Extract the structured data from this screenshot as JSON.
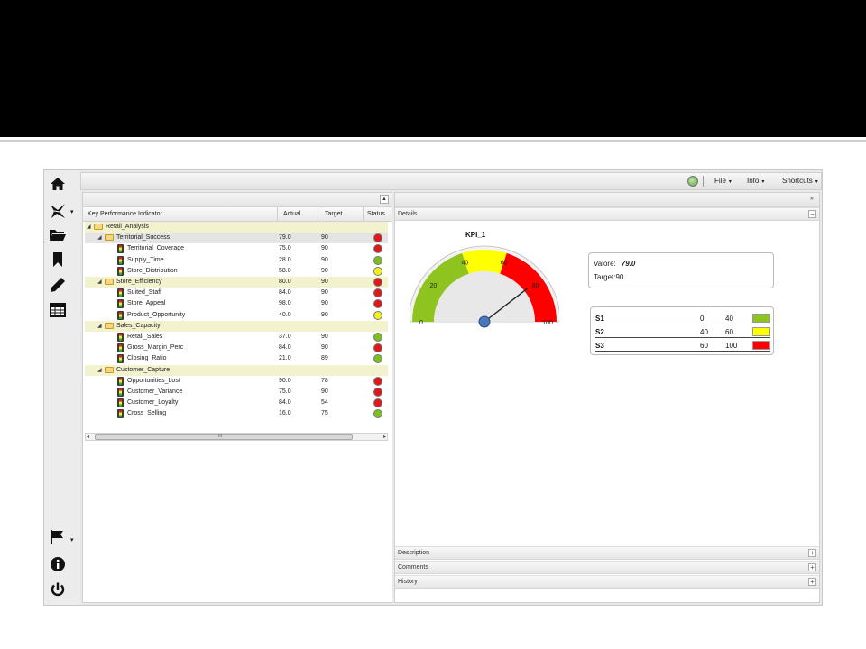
{
  "topbar": {
    "menus": [
      {
        "label": "File",
        "arrow": "▾"
      },
      {
        "label": "Info",
        "arrow": "▾"
      },
      {
        "label": "Shortcuts",
        "arrow": "▾"
      }
    ]
  },
  "sidebar": {
    "icons": [
      "home-icon",
      "navigator-icon",
      "folder-icon",
      "bookmark-icon",
      "pencil-icon",
      "calendar-icon",
      "flag-icon",
      "info-icon",
      "power-icon"
    ]
  },
  "tree": {
    "headers": {
      "name": "Key Performance Indicator",
      "actual": "Actual",
      "target": "Target",
      "status": "Status"
    },
    "rows": [
      {
        "level": 0,
        "type": "group",
        "name": "Retail_Analysis",
        "actual": "",
        "target": "",
        "status": ""
      },
      {
        "level": 1,
        "type": "group",
        "name": "Territorial_Success",
        "actual": "79.0",
        "target": "90",
        "status": "red",
        "selected": true
      },
      {
        "level": 2,
        "type": "kpi",
        "name": "Territorial_Coverage",
        "actual": "75.0",
        "target": "90",
        "status": "red"
      },
      {
        "level": 2,
        "type": "kpi",
        "name": "Supply_Time",
        "actual": "28.0",
        "target": "90",
        "status": "green"
      },
      {
        "level": 2,
        "type": "kpi",
        "name": "Store_Distribution",
        "actual": "58.0",
        "target": "90",
        "status": "yellow"
      },
      {
        "level": 1,
        "type": "group",
        "name": "Store_Efficiency",
        "actual": "80.0",
        "target": "90",
        "status": "red"
      },
      {
        "level": 2,
        "type": "kpi",
        "name": "Suited_Staff",
        "actual": "84.0",
        "target": "90",
        "status": "red"
      },
      {
        "level": 2,
        "type": "kpi",
        "name": "Store_Appeal",
        "actual": "98.0",
        "target": "90",
        "status": "red"
      },
      {
        "level": 2,
        "type": "kpi",
        "name": "Product_Opportunity",
        "actual": "40.0",
        "target": "90",
        "status": "yellow"
      },
      {
        "level": 1,
        "type": "group",
        "name": "Sales_Capacity",
        "actual": "",
        "target": "",
        "status": ""
      },
      {
        "level": 2,
        "type": "kpi",
        "name": "Retail_Sales",
        "actual": "37.0",
        "target": "90",
        "status": "green"
      },
      {
        "level": 2,
        "type": "kpi",
        "name": "Gross_Margin_Perc",
        "actual": "84.0",
        "target": "90",
        "status": "red"
      },
      {
        "level": 2,
        "type": "kpi",
        "name": "Closing_Ratio",
        "actual": "21.0",
        "target": "89",
        "status": "green"
      },
      {
        "level": 1,
        "type": "group",
        "name": "Customer_Capture",
        "actual": "",
        "target": "",
        "status": ""
      },
      {
        "level": 2,
        "type": "kpi",
        "name": "Opportunities_Lost",
        "actual": "90.0",
        "target": "78",
        "status": "red"
      },
      {
        "level": 2,
        "type": "kpi",
        "name": "Customer_Variance",
        "actual": "75.0",
        "target": "90",
        "status": "red"
      },
      {
        "level": 2,
        "type": "kpi",
        "name": "Customer_Loyalty",
        "actual": "84.0",
        "target": "54",
        "status": "red"
      },
      {
        "level": 2,
        "type": "kpi",
        "name": "Cross_Selling",
        "actual": "16.0",
        "target": "75",
        "status": "green"
      }
    ],
    "scroll_label": "III"
  },
  "details": {
    "section_title": "Details",
    "kpi_title": "KPI_1",
    "gauge": {
      "min": 0,
      "max": 100,
      "value": 79.0,
      "ticks": [
        "0",
        "20",
        "40",
        "60",
        "80",
        "100"
      ]
    },
    "value_label": "Valore:",
    "value": "79.0",
    "target_label": "Target:",
    "target": "90",
    "thresholds": [
      {
        "name": "S1",
        "from": "0",
        "to": "40",
        "color": "#8fc31f"
      },
      {
        "name": "S2",
        "from": "40",
        "to": "60",
        "color": "#ffff00"
      },
      {
        "name": "S3",
        "from": "60",
        "to": "100",
        "color": "#ff0000"
      }
    ],
    "collapsed_sections": [
      "Description",
      "Comments",
      "History"
    ]
  },
  "colors": {
    "red": "#e01818",
    "yellow": "#f2f21a",
    "green": "#7cc020"
  }
}
